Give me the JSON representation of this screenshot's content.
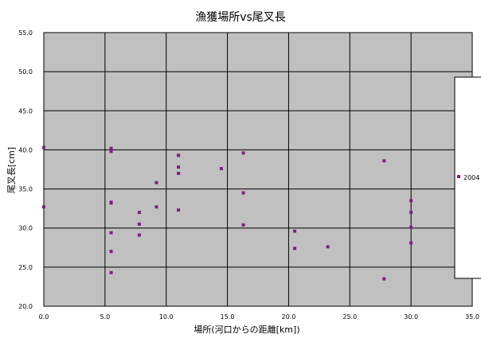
{
  "chart_data": {
    "type": "scatter",
    "title": "漁獲場所vs尾叉長",
    "xlabel": "場所(河口からの距離[km])",
    "ylabel": "尾叉長[cm]",
    "xlim": [
      0,
      35
    ],
    "ylim": [
      20,
      55
    ],
    "x_ticks": [
      "0.0",
      "5.0",
      "10.0",
      "15.0",
      "20.0",
      "25.0",
      "30.0",
      "35.0"
    ],
    "y_ticks": [
      "20.0",
      "25.0",
      "30.0",
      "35.0",
      "40.0",
      "45.0",
      "50.0",
      "55.0"
    ],
    "grid": true,
    "legend_position": "right",
    "colors": {
      "marker": "#7f1f7f",
      "plot_background": "#c0c0c0",
      "grid": "#000000"
    },
    "series": [
      {
        "name": "2004",
        "points": [
          [
            0.0,
            40.3
          ],
          [
            0.0,
            32.7
          ],
          [
            5.5,
            40.2
          ],
          [
            5.5,
            39.8
          ],
          [
            5.5,
            33.3
          ],
          [
            5.5,
            33.2
          ],
          [
            5.5,
            29.4
          ],
          [
            5.5,
            27.0
          ],
          [
            5.5,
            24.3
          ],
          [
            7.8,
            32.0
          ],
          [
            7.8,
            30.5
          ],
          [
            7.8,
            29.1
          ],
          [
            9.2,
            35.8
          ],
          [
            9.2,
            32.7
          ],
          [
            11.0,
            39.3
          ],
          [
            11.0,
            37.8
          ],
          [
            11.0,
            37.0
          ],
          [
            11.0,
            32.3
          ],
          [
            14.5,
            37.6
          ],
          [
            16.3,
            39.6
          ],
          [
            16.3,
            34.5
          ],
          [
            16.3,
            30.4
          ],
          [
            20.5,
            29.6
          ],
          [
            20.5,
            27.4
          ],
          [
            23.2,
            27.6
          ],
          [
            27.8,
            38.6
          ],
          [
            27.8,
            23.5
          ],
          [
            30.0,
            33.5
          ],
          [
            30.0,
            32.0
          ],
          [
            30.0,
            30.1
          ],
          [
            30.0,
            28.1
          ]
        ]
      }
    ]
  }
}
